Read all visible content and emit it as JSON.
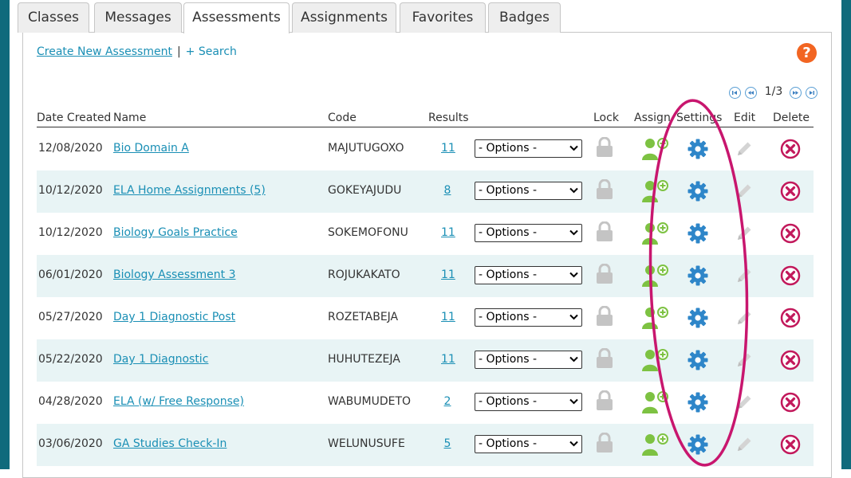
{
  "tabs": [
    "Classes",
    "Messages",
    "Assessments",
    "Assignments",
    "Favorites",
    "Badges"
  ],
  "active_tab": "Assessments",
  "links": {
    "create": "Create New Assessment",
    "separator": "|",
    "search": "+ Search"
  },
  "help": {
    "icon": "question-icon",
    "glyph": "?"
  },
  "pager": {
    "text": "1/3"
  },
  "columns": [
    "Date Created",
    "Name",
    "Code",
    "Results",
    "Lock",
    "Assign",
    "Settings",
    "Edit",
    "Delete"
  ],
  "options_label": "- Options -",
  "rows": [
    {
      "date": "12/08/2020",
      "name": "Bio Domain A",
      "code": "MAJUTUGOXO",
      "results": "11"
    },
    {
      "date": "10/12/2020",
      "name": "ELA Home Assignments (5)",
      "code": "GOKEYAJUDU",
      "results": "8"
    },
    {
      "date": "10/12/2020",
      "name": "Biology Goals Practice",
      "code": "SOKEMOFONU",
      "results": "11"
    },
    {
      "date": "06/01/2020",
      "name": "Biology Assessment 3",
      "code": "ROJUKAKATO",
      "results": "11"
    },
    {
      "date": "05/27/2020",
      "name": "Day 1 Diagnostic Post",
      "code": "ROZETABEJA",
      "results": "11"
    },
    {
      "date": "05/22/2020",
      "name": "Day 1 Diagnostic",
      "code": "HUHUTEZEJA",
      "results": "11"
    },
    {
      "date": "04/28/2020",
      "name": "ELA (w/ Free Response)",
      "code": "WABUMUDETO",
      "results": "2"
    },
    {
      "date": "03/06/2020",
      "name": "GA Studies Check-In",
      "code": "WELUNUSUFE",
      "results": "5"
    }
  ],
  "colors": {
    "accent": "#1a8fb5",
    "frame": "#106a7c",
    "assign": "#7dc242",
    "settings": "#2e86c9",
    "delete": "#c2185b",
    "annotation": "#c8166e",
    "row_alt": "#e8f4f5"
  }
}
